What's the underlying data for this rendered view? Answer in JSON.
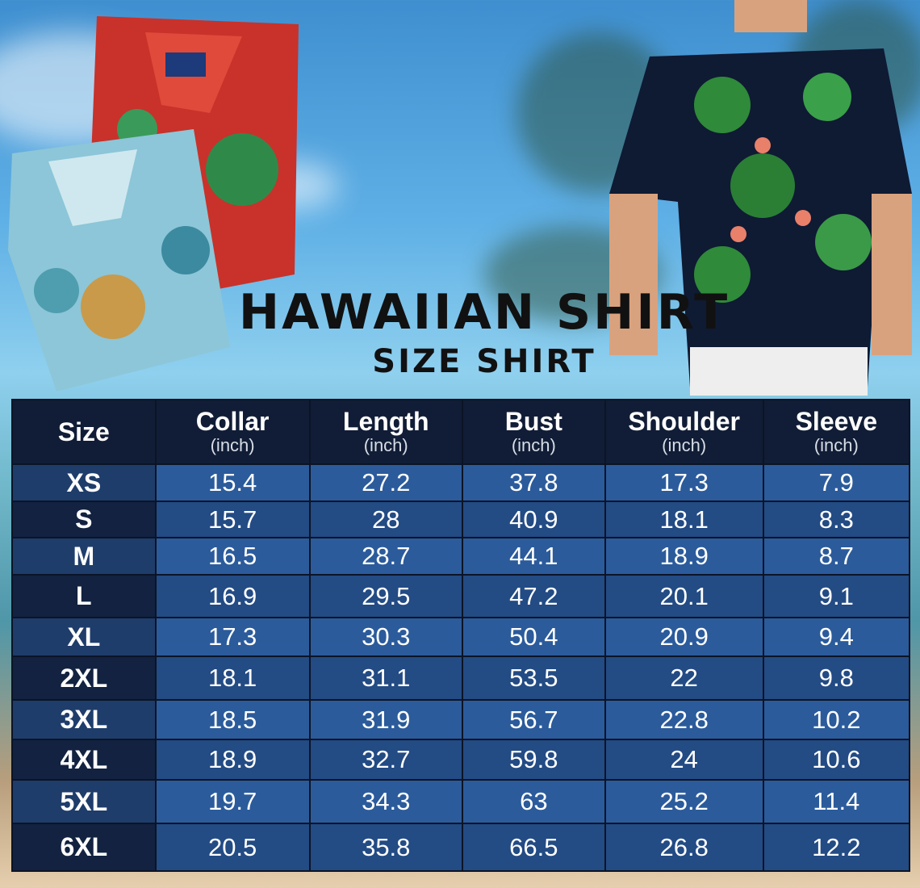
{
  "title": "HAWAIIAN SHIRT",
  "subtitle": "SIZE SHIRT",
  "colors": {
    "header": "#111d36",
    "row_light": "#2b5b9b",
    "row_dark": "#234b84",
    "size_col": "#122240"
  },
  "table": {
    "headers": [
      {
        "label": "Size",
        "unit": ""
      },
      {
        "label": "Collar",
        "unit": "(inch)"
      },
      {
        "label": "Length",
        "unit": "(inch)"
      },
      {
        "label": "Bust",
        "unit": "(inch)"
      },
      {
        "label": "Shoulder",
        "unit": "(inch)"
      },
      {
        "label": "Sleeve",
        "unit": "(inch)"
      }
    ],
    "rows": [
      [
        "XS",
        "15.4",
        "27.2",
        "37.8",
        "17.3",
        "7.9"
      ],
      [
        "S",
        "15.7",
        "28",
        "40.9",
        "18.1",
        "8.3"
      ],
      [
        "M",
        "16.5",
        "28.7",
        "44.1",
        "18.9",
        "8.7"
      ],
      [
        "L",
        "16.9",
        "29.5",
        "47.2",
        "20.1",
        "9.1"
      ],
      [
        "XL",
        "17.3",
        "30.3",
        "50.4",
        "20.9",
        "9.4"
      ],
      [
        "2XL",
        "18.1",
        "31.1",
        "53.5",
        "22",
        "9.8"
      ],
      [
        "3XL",
        "18.5",
        "31.9",
        "56.7",
        "22.8",
        "10.2"
      ],
      [
        "4XL",
        "18.9",
        "32.7",
        "59.8",
        "24",
        "10.6"
      ],
      [
        "5XL",
        "19.7",
        "34.3",
        "63",
        "25.2",
        "11.4"
      ],
      [
        "6XL",
        "20.5",
        "35.8",
        "66.5",
        "26.8",
        "12.2"
      ]
    ]
  }
}
